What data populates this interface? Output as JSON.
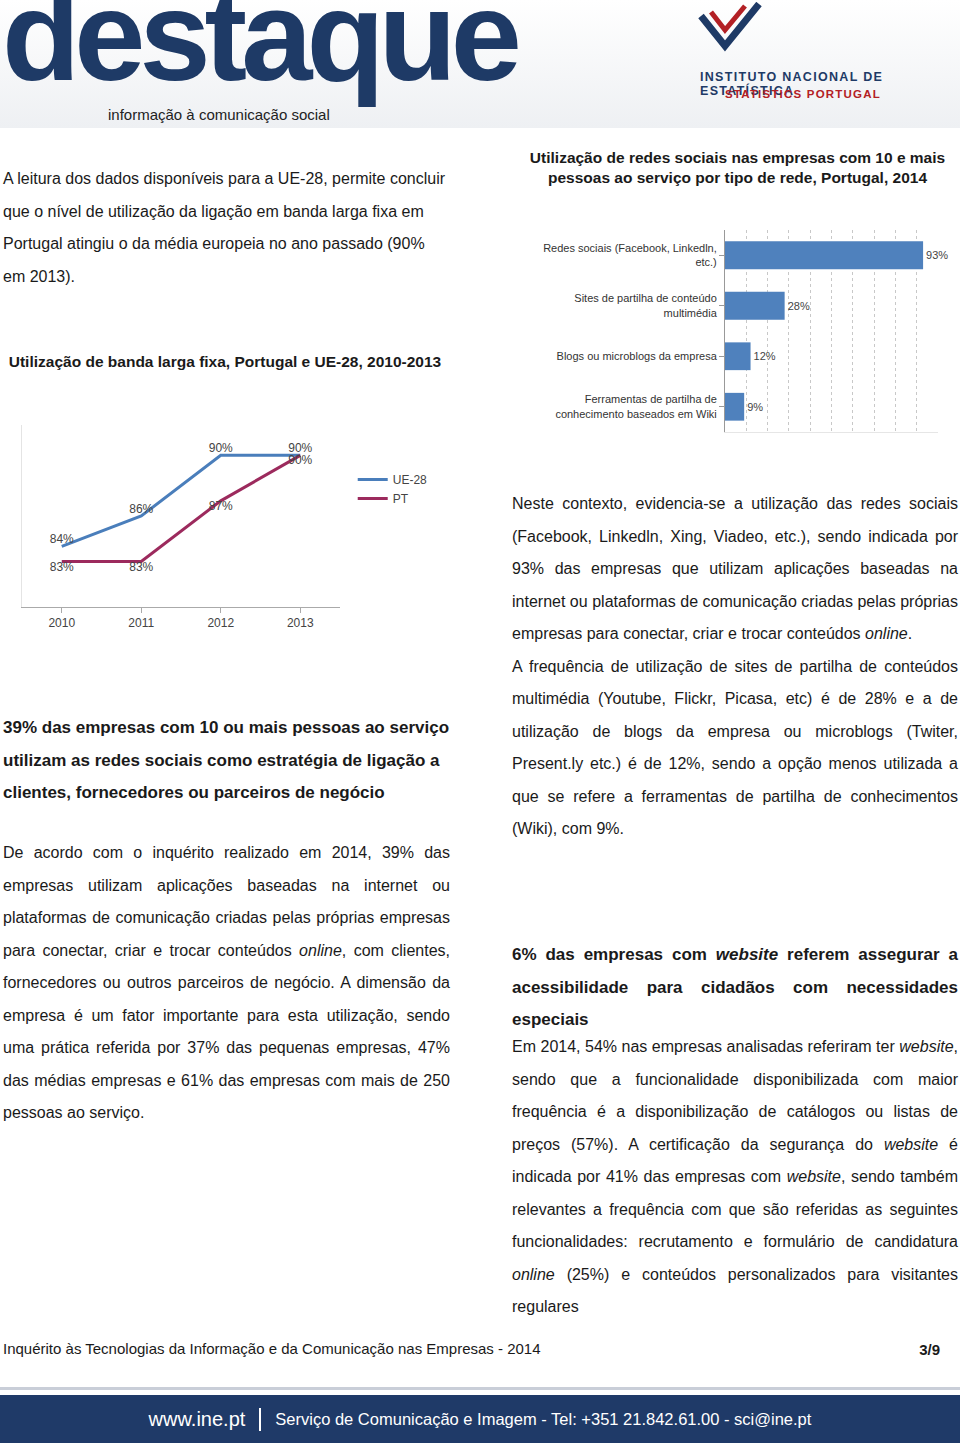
{
  "header": {
    "logo": "destaque",
    "tagline": "informação à comunicação social",
    "institute": "INSTITUTO NACIONAL DE ESTATÍSTICA",
    "institute_en": "STATISTICS PORTUGAL"
  },
  "left_column": {
    "intro": [
      "A leitura dos dados disponíveis para a UE-28, permite concluir que o nível de utilização da ligação em banda larga fixa em Portugal atingiu o da média europeia no ano passado (90% em 2013)."
    ],
    "heading": [
      "39% das empresas com 10 ou mais pessoas ao serviço utilizam as redes sociais como estratégia de ligação a clientes, fornecedores ou parceiros de negócio"
    ],
    "paragraph": [
      "De acordo com o inquérito realizado em 2014, 39% das empresas utilizam aplicações baseadas na internet ou plataformas de comunicação criadas pelas próprias empresas para conectar, criar e trocar conteúdos ",
      {
        "text": "online",
        "italic": true
      },
      ", com clientes, fornecedores ou outros parceiros de negócio. A dimensão da empresa é um fator importante para esta utilização, sendo uma prática referida por 37% das pequenas empresas, 47% das médias empresas e 61% das empresas com mais de 250 pessoas ao serviço."
    ]
  },
  "right_column": {
    "paragraphs": [
      [
        "Neste contexto, evidencia-se a utilização das redes sociais (Facebook, Linkedln, Xing, Viadeo, etc.), sendo indicada por 93% das empresas que utilizam aplicações baseadas na internet ou plataformas de comunicação criadas pelas próprias empresas para conectar, criar e trocar conteúdos ",
        {
          "text": "online",
          "italic": true
        },
        "."
      ],
      [
        "A frequência de utilização de sites de partilha de conteúdos multimédia (Youtube, Flickr, Picasa, etc) é de 28% e a de utilização de blogs da empresa ou microblogs (Twiter, Present.ly etc.) é de 12%, sendo a opção menos utilizada a que se refere a ferramentas de partilha de conhecimentos (Wiki), com 9%."
      ]
    ],
    "heading": [
      "6% das empresas com ",
      {
        "text": "website",
        "italic": true
      },
      " referem assegurar a acessibilidade para cidadãos com necessidades especiais"
    ],
    "paragraph": [
      "Em 2014, 54% nas empresas analisadas referiram ter ",
      {
        "text": "website",
        "italic": true
      },
      ", sendo que a funcionalidade disponibilizada com maior frequência é a disponibilização de catálogos ou listas de preços (57%). A certificação da segurança do ",
      {
        "text": "website",
        "italic": true
      },
      " é indicada por 41% das empresas com ",
      {
        "text": "website",
        "italic": true
      },
      ", sendo também relevantes a frequência com que são referidas as seguintes funcionalidades: recrutamento e formulário de candidatura ",
      {
        "text": "online",
        "italic": true
      },
      " (25%) e conteúdos personalizados para visitantes regulares"
    ]
  },
  "footer": {
    "survey": "Inquérito às Tecnologias da Informação e da Comunicação nas Empresas - 2014",
    "page": "3/9",
    "site": "www.ine.pt",
    "contacts": "Serviço de Comunicação e Imagem - Tel: +351 21.842.61.00 - sci@ine.pt"
  },
  "chart_data": [
    {
      "type": "line",
      "title": "Utilização de banda larga fixa, Portugal e UE-28, 2010-2013",
      "categories": [
        "2010",
        "2011",
        "2012",
        "2013"
      ],
      "series": [
        {
          "name": "UE-28",
          "color": "#4a7ebb",
          "values": [
            84,
            86,
            90,
            90
          ],
          "value_labels": [
            "84%",
            "86%",
            "90%",
            "90%"
          ]
        },
        {
          "name": "PT",
          "color": "#9c2a5d",
          "values": [
            83,
            83,
            87,
            90
          ],
          "value_labels": [
            "83%",
            "83%",
            "87%",
            "90%"
          ]
        }
      ],
      "ylim": [
        80,
        92
      ],
      "data_labels": true,
      "tick_labels": "x",
      "legend": "right",
      "grid": false
    },
    {
      "type": "bar",
      "orientation": "horizontal",
      "title": "Utilização de redes sociais nas empresas com 10 e mais pessoas ao serviço por tipo de rede, Portugal, 2014",
      "categories": [
        "Redes sociais (Facebook, Linkedln, etc.)",
        "Sites de partilha de conteúdo multimédia",
        "Blogs ou microblogs da empresa",
        "Ferramentas de partilha de conhecimento baseados em Wiki"
      ],
      "values": [
        93,
        28,
        12,
        9
      ],
      "value_labels": [
        "93%",
        "28%",
        "12%",
        "9%"
      ],
      "color": "#4f81bd",
      "xlim": [
        0,
        100
      ],
      "xticks": [
        0,
        10,
        20,
        30,
        40,
        50,
        60,
        70,
        80,
        90,
        100
      ],
      "grid": true,
      "data_labels": true,
      "tick_labels": "y"
    }
  ]
}
